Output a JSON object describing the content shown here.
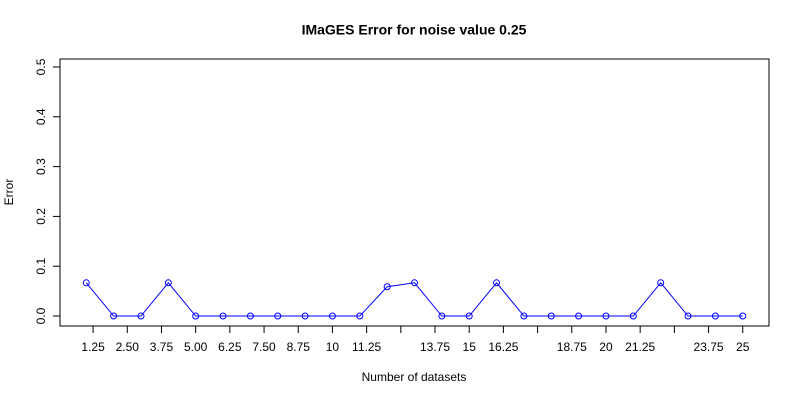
{
  "chart_data": {
    "type": "line",
    "title": "IMaGES Error for noise value 0.25",
    "xlabel": "Number of datasets",
    "ylabel": "Error",
    "x": [
      1,
      2,
      3,
      4,
      5,
      6,
      7,
      8,
      9,
      10,
      11,
      12,
      13,
      14,
      15,
      16,
      17,
      18,
      19,
      20,
      21,
      22,
      23,
      24,
      25
    ],
    "series": [
      {
        "color": "#0000ff",
        "values": [
          0.0667,
          0,
          0,
          0.0667,
          0,
          0,
          0,
          0,
          0,
          0,
          0,
          0.0588,
          0.0667,
          0,
          0,
          0.0667,
          0,
          0,
          0,
          0,
          0,
          0.0667,
          0,
          0,
          0
        ]
      }
    ],
    "xlim": [
      0.04,
      25.96
    ],
    "ylim": [
      -0.02,
      0.516
    ],
    "xticks": [
      1.25,
      {
        "value": 2.5,
        "label": "2.50"
      },
      3.75,
      {
        "value": 5,
        "label": "5.00"
      },
      6.25,
      {
        "value": 7.5,
        "label": "7.50"
      },
      8.75,
      10,
      11.25,
      {
        "value": 12.5,
        "label": null
      },
      13.75,
      15,
      16.25,
      {
        "value": 17.5,
        "label": null
      },
      18.75,
      20,
      21.25,
      {
        "value": 22.5,
        "label": null
      },
      23.75,
      25
    ],
    "yticks": [
      {
        "value": 0,
        "label": "0.0"
      },
      0.1,
      0.2,
      0.3,
      0.4,
      0.5
    ]
  }
}
